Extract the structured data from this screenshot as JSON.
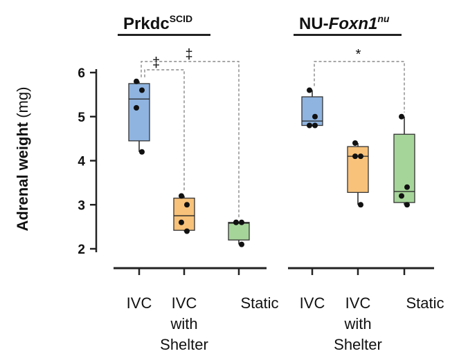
{
  "chart_data": {
    "type": "box",
    "ylabel_bold": "Adrenal weight",
    "ylabel_unit": "(mg)",
    "ylim": [
      2,
      6
    ],
    "yticks": [
      "2",
      "3",
      "4",
      "5",
      "6"
    ],
    "panels": [
      {
        "title": "Prkdc",
        "title_sup": "SCID",
        "title_italic": false,
        "groups": [
          {
            "label": [
              "IVC"
            ],
            "color": "#8fb4e0",
            "min": 4.2,
            "q1": 4.45,
            "median": 5.4,
            "q3": 5.75,
            "max": 5.8,
            "points": [
              5.8,
              5.6,
              5.2,
              4.2
            ]
          },
          {
            "label": [
              "IVC",
              "with",
              "Shelter"
            ],
            "color": "#f8c27a",
            "min": 2.4,
            "q1": 2.42,
            "median": 2.75,
            "q3": 3.15,
            "max": 3.2,
            "points": [
              3.2,
              3.0,
              2.6,
              2.4
            ]
          },
          {
            "label": [
              "Static"
            ],
            "color": "#a6d59a",
            "min": 2.1,
            "q1": 2.2,
            "median": 2.58,
            "q3": 2.6,
            "max": 2.6,
            "points": [
              2.6,
              2.6,
              2.6,
              2.1
            ]
          }
        ],
        "significance": [
          {
            "from": 0,
            "to": 2,
            "symbol": "‡"
          },
          {
            "from": 0,
            "to": 1,
            "symbol": "‡"
          }
        ]
      },
      {
        "title": "NU-",
        "title_italic_part": "Foxn1",
        "title_sup": "nu",
        "groups": [
          {
            "label": [
              "IVC"
            ],
            "color": "#8fb4e0",
            "min": 4.8,
            "q1": 4.8,
            "median": 4.9,
            "q3": 5.45,
            "max": 5.6,
            "points": [
              5.6,
              5.0,
              4.8,
              4.8
            ]
          },
          {
            "label": [
              "IVC",
              "with",
              "Shelter"
            ],
            "color": "#f8c27a",
            "min": 3.0,
            "q1": 3.28,
            "median": 4.1,
            "q3": 4.32,
            "max": 4.4,
            "points": [
              4.4,
              4.1,
              4.1,
              3.0
            ]
          },
          {
            "label": [
              "Static"
            ],
            "color": "#a6d59a",
            "min": 3.0,
            "q1": 3.05,
            "median": 3.3,
            "q3": 4.6,
            "max": 5.0,
            "points": [
              5.0,
              3.4,
              3.2,
              3.0
            ]
          }
        ],
        "significance": [
          {
            "from": 0,
            "to": 2,
            "symbol": "*"
          }
        ]
      }
    ]
  }
}
